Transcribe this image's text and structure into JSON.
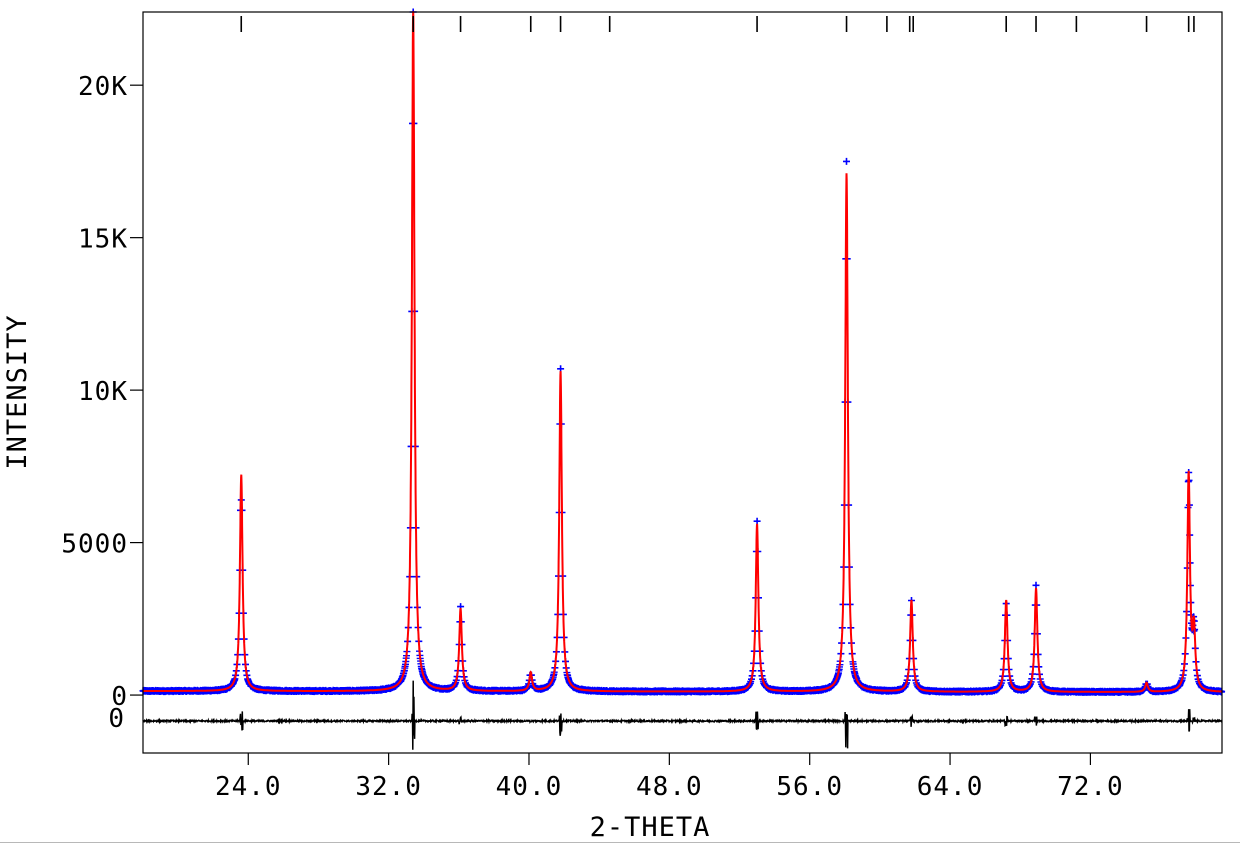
{
  "chart_data": {
    "type": "line",
    "title": "",
    "xlabel": "2-THETA",
    "ylabel": "INTENSITY",
    "xlim": [
      18.0,
      79.5
    ],
    "ylim": [
      -1900,
      22400
    ],
    "x_ticks": [
      24.0,
      32.0,
      40.0,
      48.0,
      56.0,
      64.0,
      72.0
    ],
    "x_tick_labels": [
      "24.0",
      "32.0",
      "40.0",
      "48.0",
      "56.0",
      "64.0",
      "72.0"
    ],
    "y_ticks": [
      0,
      5000,
      10000,
      15000,
      20000
    ],
    "y_tick_labels": [
      "0",
      "5000",
      "10K",
      "15K",
      "20K"
    ],
    "diff_zero_label": "0",
    "diff_offset": -850,
    "background": 130,
    "peaks": [
      {
        "x": 23.6,
        "intensity": 7100,
        "obs_max": 6400
      },
      {
        "x": 33.4,
        "intensity": 22300,
        "obs_max": 22400
      },
      {
        "x": 36.1,
        "intensity": 2700,
        "obs_max": 2900
      },
      {
        "x": 40.1,
        "intensity": 600,
        "obs_max": 650
      },
      {
        "x": 41.8,
        "intensity": 10500,
        "obs_max": 10700
      },
      {
        "x": 53.0,
        "intensity": 5500,
        "obs_max": 5700
      },
      {
        "x": 58.1,
        "intensity": 17000,
        "obs_max": 17500
      },
      {
        "x": 61.8,
        "intensity": 3000,
        "obs_max": 3100
      },
      {
        "x": 67.2,
        "intensity": 3000,
        "obs_max": 3000
      },
      {
        "x": 68.9,
        "intensity": 3400,
        "obs_max": 3600
      },
      {
        "x": 75.2,
        "intensity": 300,
        "obs_max": 350
      },
      {
        "x": 77.6,
        "intensity": 7100,
        "obs_max": 7300
      },
      {
        "x": 77.9,
        "intensity": 1900,
        "obs_max": 2100
      }
    ],
    "reflection_markers": [
      23.6,
      33.4,
      36.1,
      40.1,
      41.8,
      44.6,
      53.0,
      58.1,
      60.4,
      61.7,
      61.9,
      67.2,
      68.9,
      71.2,
      75.2,
      77.6,
      77.9
    ],
    "series": [
      {
        "role": "observed",
        "marker": "+",
        "color": "#0000ff"
      },
      {
        "role": "calculated",
        "style": "line",
        "color": "#ff0000"
      },
      {
        "role": "difference",
        "style": "line",
        "color": "#000000"
      },
      {
        "role": "reflection positions",
        "style": "tick",
        "color": "#000000"
      }
    ]
  }
}
